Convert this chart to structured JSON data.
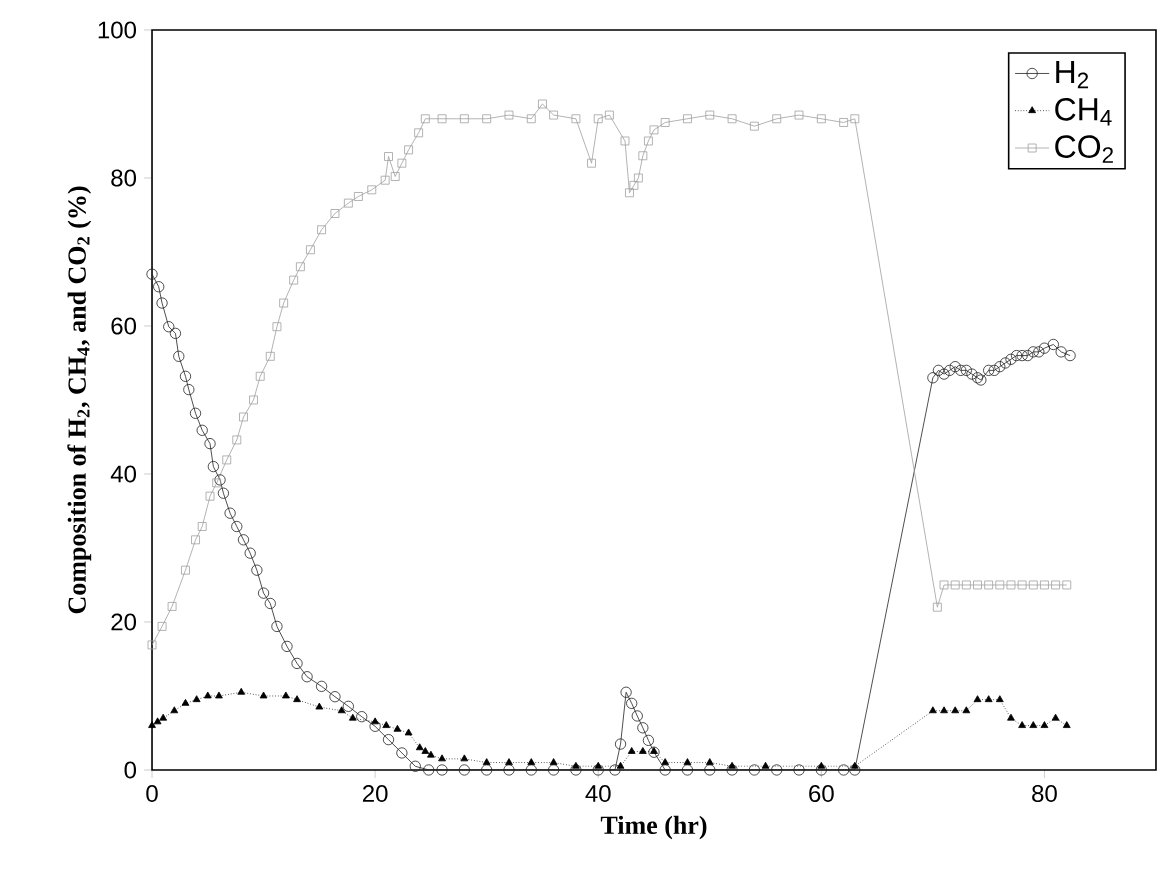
{
  "chart_data": {
    "type": "line",
    "xlabel": "Time (hr)",
    "ylabel": "Composition of H$_{2}$, CH$_{4}$, and CO$_{2}$ (%)",
    "xlim": [
      0,
      90
    ],
    "ylim": [
      0,
      100
    ],
    "xticks": [
      0,
      20,
      40,
      60,
      80
    ],
    "yticks": [
      0,
      20,
      40,
      60,
      80,
      100
    ],
    "legend": "top right",
    "series": [
      {
        "name": "H$_{2}$",
        "color": "#222222",
        "marker": "circle",
        "line_style": "solid",
        "x": [
          0,
          0.6,
          0.9,
          1.5,
          2.1,
          2.4,
          3.0,
          3.3,
          3.9,
          4.5,
          5.2,
          5.5,
          6.1,
          6.4,
          7.0,
          7.6,
          8.2,
          8.8,
          9.4,
          10.0,
          10.6,
          11.2,
          12.1,
          13.0,
          13.9,
          15.2,
          16.4,
          17.6,
          18.8,
          20.0,
          21.2,
          22.4,
          23.6,
          24.8,
          26,
          28,
          30,
          32,
          34,
          36,
          38,
          40,
          41.5,
          42,
          42.5,
          43,
          43.5,
          44,
          44.5,
          45,
          46,
          48,
          50,
          52,
          54,
          56,
          58,
          60,
          62,
          63,
          70,
          70.5,
          71,
          71.5,
          72,
          72.5,
          73,
          73.5,
          74,
          74.3,
          75,
          75.5,
          76,
          76.5,
          77,
          77.5,
          78,
          78.5,
          79,
          79.5,
          80,
          80.8,
          81.5,
          82.3
        ],
        "values": [
          67.0,
          65.3,
          63.1,
          59.9,
          59.0,
          55.9,
          53.2,
          51.4,
          48.2,
          45.9,
          44.1,
          41.0,
          39.2,
          37.4,
          34.7,
          32.9,
          31.1,
          29.3,
          27.0,
          23.9,
          22.5,
          19.4,
          16.7,
          14.4,
          12.6,
          11.3,
          9.9,
          8.6,
          7.2,
          5.9,
          4.1,
          2.3,
          0.5,
          0,
          0,
          0,
          0,
          0,
          0,
          0,
          0,
          0,
          0,
          3.5,
          10.5,
          9,
          7.3,
          5.7,
          4,
          2.4,
          0,
          0,
          0,
          0,
          0,
          0,
          0,
          0,
          0,
          0,
          53,
          54,
          53.5,
          54,
          54.5,
          54,
          54,
          53.5,
          53,
          52.7,
          54,
          54,
          54.5,
          55,
          55.5,
          56,
          56,
          56,
          56.5,
          56.5,
          57,
          57.5,
          56.5,
          56
        ]
      },
      {
        "name": "CH$_{4}$",
        "color": "#000000",
        "marker": "triangle",
        "line_style": "dotted",
        "x": [
          0,
          0.5,
          1,
          2,
          3,
          4,
          5,
          6,
          8,
          10,
          12,
          13,
          15,
          17,
          18,
          20,
          21,
          22,
          23,
          24,
          24.5,
          25,
          26,
          28,
          30,
          32,
          34,
          36,
          38,
          40,
          42,
          43,
          44,
          45,
          46,
          48,
          50,
          52,
          55,
          60,
          63,
          70,
          71,
          72,
          73,
          74,
          75,
          76,
          77,
          78,
          79,
          80,
          81,
          82
        ],
        "values": [
          6,
          6.5,
          7,
          8,
          9,
          9.5,
          10,
          10,
          10.5,
          10,
          10,
          9.5,
          8.5,
          8,
          7,
          6.5,
          6,
          5.5,
          5,
          3,
          2.5,
          2,
          1.5,
          1.5,
          1,
          1,
          1,
          1,
          0.5,
          0.5,
          0.5,
          2.5,
          2.5,
          2.5,
          1,
          1,
          1,
          0.5,
          0.5,
          0.5,
          0.5,
          8,
          8,
          8,
          8,
          9.5,
          9.5,
          9.5,
          7,
          6,
          6,
          6,
          7,
          6
        ]
      },
      {
        "name": "CO$_{2}$",
        "color": "#a0a0a0",
        "marker": "square",
        "line_style": "solid",
        "x": [
          0,
          0.9,
          1.8,
          3,
          3.9,
          4.5,
          5.2,
          5.8,
          6.7,
          7.6,
          8.2,
          9.1,
          9.7,
          10.6,
          11.2,
          11.8,
          12.7,
          13.3,
          14.2,
          15.2,
          16.4,
          17.6,
          18.5,
          19.7,
          20.9,
          21.2,
          21.8,
          22.4,
          23,
          23.9,
          24.5,
          26,
          28,
          30,
          32,
          34,
          35,
          36,
          38,
          39.4,
          40,
          41,
          42.4,
          42.8,
          43.2,
          43.6,
          44,
          44.5,
          45,
          46,
          48,
          50,
          52,
          54,
          56,
          58,
          60,
          62,
          63,
          70.4,
          71,
          72,
          73,
          74,
          75,
          76,
          77,
          78,
          79,
          80,
          81,
          82
        ],
        "values": [
          16.9,
          19.4,
          22.1,
          27,
          31.1,
          32.9,
          37,
          38.8,
          41.9,
          44.6,
          47.7,
          50,
          53.2,
          55.9,
          59.9,
          63.1,
          66.2,
          68,
          70.3,
          73,
          75.2,
          76.6,
          77.5,
          78.4,
          79.7,
          82.9,
          80.2,
          82,
          83.8,
          86.1,
          88,
          88,
          88,
          88,
          88.5,
          88,
          90,
          88.5,
          88,
          82,
          88,
          88.5,
          85,
          78,
          79,
          80,
          83,
          85,
          86.5,
          87.5,
          88,
          88.5,
          88,
          87,
          88,
          88.5,
          88,
          87.5,
          88,
          22,
          25,
          25,
          25,
          25,
          25,
          25,
          25,
          25,
          25,
          25,
          25,
          25
        ]
      }
    ]
  }
}
